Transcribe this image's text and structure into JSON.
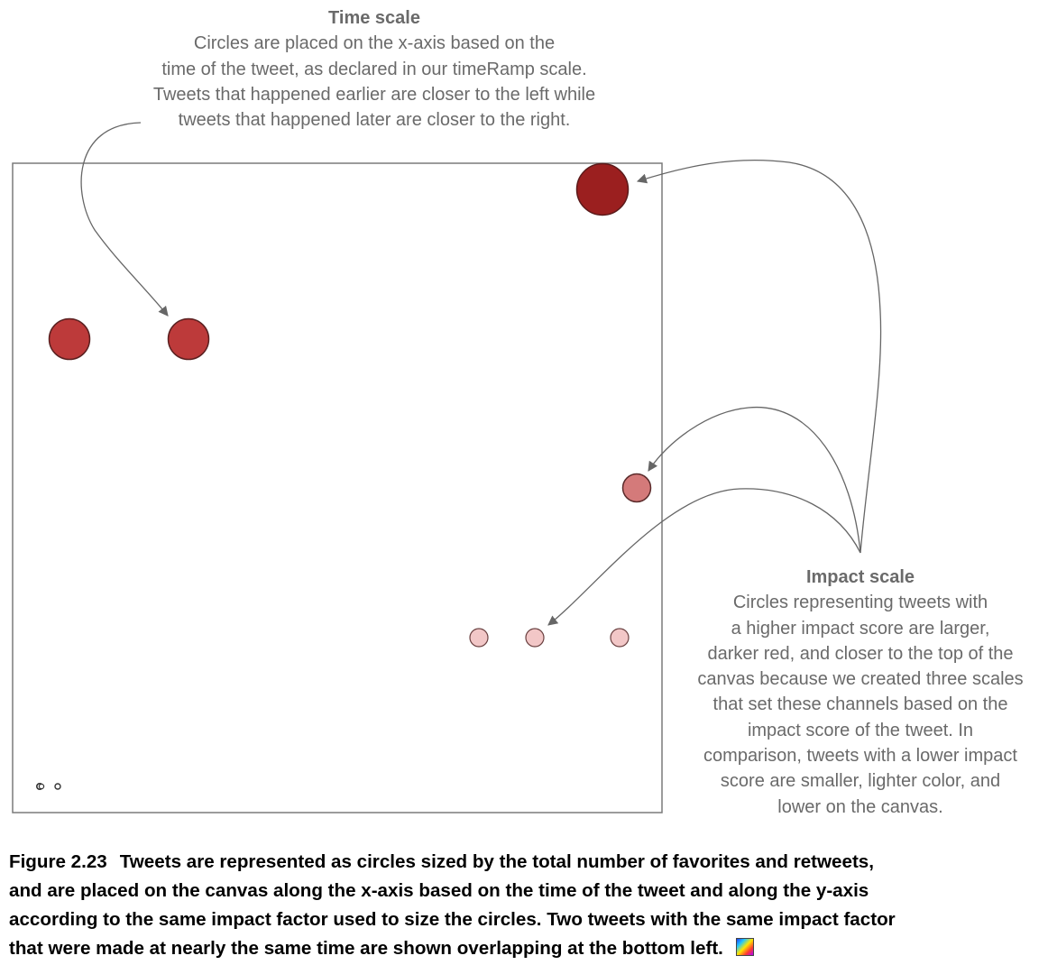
{
  "time_scale": {
    "title": "Time scale",
    "lines": [
      "Circles are placed on the x-axis based on the",
      "time of the tweet, as declared in our timeRamp scale.",
      "Tweets that happened earlier are closer to the left while",
      "tweets that happened later are closer to the right."
    ]
  },
  "impact_scale": {
    "title": "Impact scale",
    "lines": [
      "Circles representing tweets with",
      "a higher impact score are larger,",
      "darker red, and closer to the top of the",
      "canvas because we created three scales",
      "that set these channels based on the",
      "impact score of the tweet. In",
      "comparison, tweets with a lower impact",
      "score are smaller, lighter color, and",
      "lower on the canvas."
    ]
  },
  "caption": {
    "label": "Figure 2.23",
    "lines": [
      "Tweets are represented as circles sized by the total number of favorites and retweets,",
      "and are placed on the canvas along the x-axis based on the time of the tweet and along the y-axis",
      "according to the same impact factor used to size the circles. Two tweets with the same impact factor",
      "that were made at nearly the same time are shown overlapping at the bottom left."
    ],
    "icon": "color-palette-icon"
  },
  "colors": {
    "canvas_border": "#7a7a7a",
    "arrow": "#666666",
    "annotation_text": "#6a6a6a",
    "circle_stroke": "#5a2a2a",
    "circle_high": "#9b1f1f",
    "circle_mid_high": "#bd3a3a",
    "circle_mid": "#d47a7a",
    "circle_low": "#f2c7c7",
    "circle_lowest": "#ffffff"
  }
}
